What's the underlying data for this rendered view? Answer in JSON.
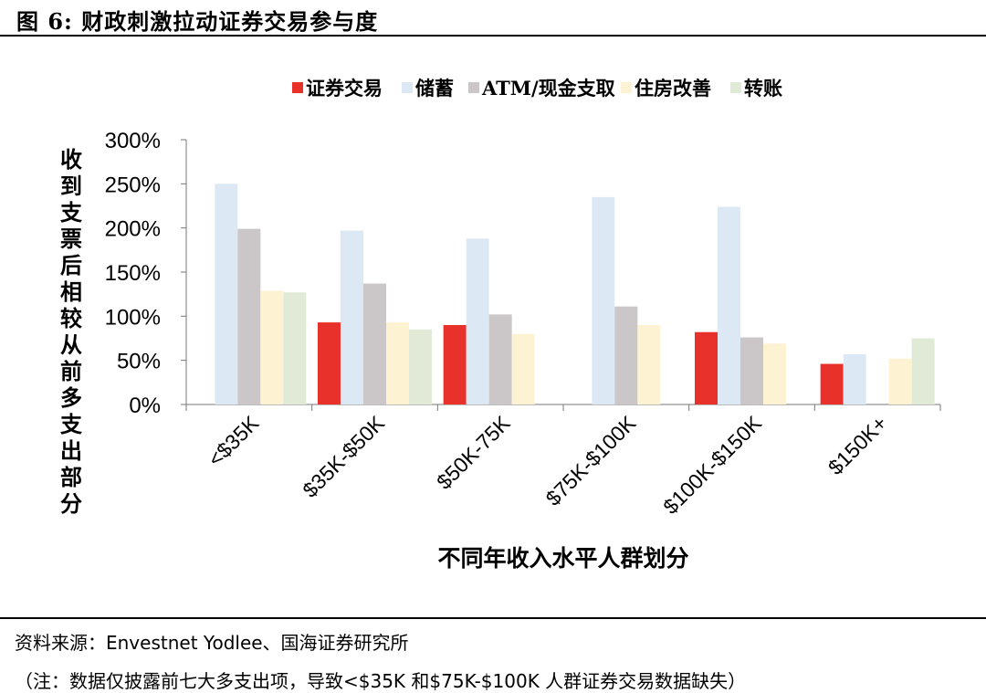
{
  "figure": {
    "title": "图 6:  财政刺激拉动证券交易参与度",
    "source": "资料来源：Envestnet Yodlee、国海证券研究所",
    "note": "（注：数据仅披露前七大多支出项，导致<$35K 和$75K-$100K 人群证券交易数据缺失）"
  },
  "chart_data": {
    "type": "bar",
    "title": "",
    "xlabel": "不同年收入水平人群划分",
    "ylabel": "收到支票后相较从前多支出部分",
    "categories": [
      "<$35K",
      "$35K-$50K",
      "$50K-75K",
      "$75K-$100K",
      "$100K-$150K",
      "$150K+"
    ],
    "ylim": [
      0,
      300
    ],
    "yticks": [
      "0%",
      "50%",
      "100%",
      "150%",
      "200%",
      "250%",
      "300%"
    ],
    "legend_position": "top",
    "grid": false,
    "series": [
      {
        "name": "证券交易",
        "color": "#e8312a",
        "values": [
          null,
          93,
          90,
          null,
          82,
          46
        ]
      },
      {
        "name": "储蓄",
        "color": "#dde8f5",
        "values": [
          250,
          197,
          188,
          235,
          224,
          57
        ]
      },
      {
        "name": "ATM/现金支取",
        "color": "#cbc6c8",
        "values": [
          199,
          137,
          102,
          111,
          76,
          null
        ]
      },
      {
        "name": "住房改善",
        "color": "#fdf3d2",
        "values": [
          129,
          93,
          80,
          90,
          69,
          52
        ]
      },
      {
        "name": "转账",
        "color": "#e1ead7",
        "values": [
          127,
          85,
          null,
          null,
          null,
          75
        ]
      }
    ]
  }
}
